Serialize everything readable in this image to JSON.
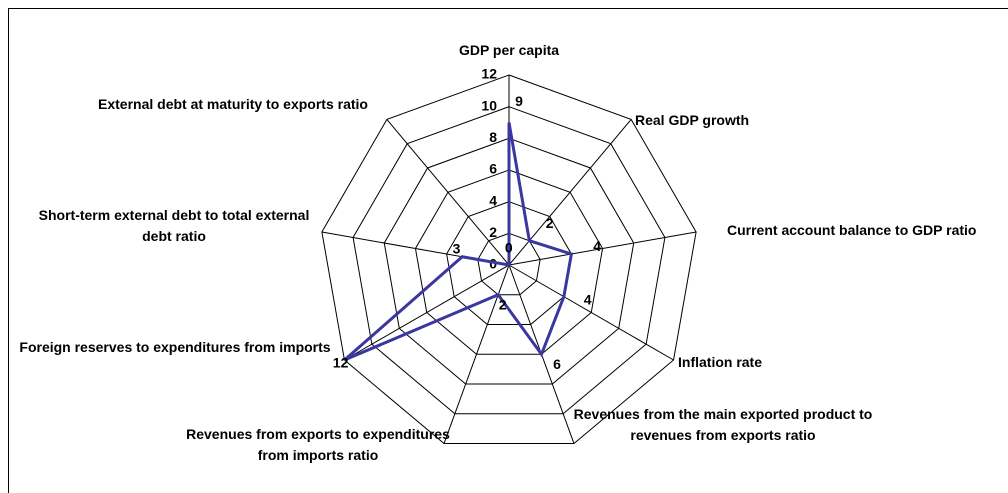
{
  "chart_data": {
    "type": "radar",
    "categories": [
      "GDP per capita",
      "Real GDP growth",
      "Current account balance to GDP ratio",
      "Inflation rate",
      "Revenues from the main exported product to revenues from exports ratio",
      "Revenues from exports to expenditures from imports ratio",
      "Foreign reserves to expenditures from imports",
      "Short-term external debt to total external debt ratio",
      "External debt at maturity to exports ratio"
    ],
    "values": [
      9,
      2,
      4,
      4,
      6,
      2,
      12,
      3,
      0
    ],
    "color": "#3a37a0",
    "ylim": [
      0,
      12
    ],
    "yticks": [
      0,
      2,
      4,
      6,
      8,
      10,
      12
    ],
    "grid": true
  }
}
